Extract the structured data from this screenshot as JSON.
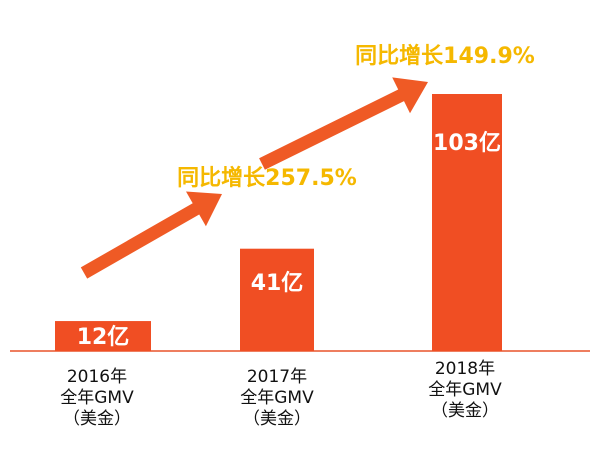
{
  "colors": {
    "bar": "#F04E23",
    "arrow": "#EF5A25",
    "growth_text": "#F5B800",
    "axis": "#E8542A"
  },
  "chart_data": {
    "type": "bar",
    "title": "",
    "xlabel": "",
    "ylabel": "",
    "ylim": [
      0,
      115
    ],
    "grid": false,
    "categories": [
      [
        "2016年",
        "全年GMV",
        "（美金）"
      ],
      [
        "2017年",
        "全年GMV",
        "（美金）"
      ],
      [
        "2018年",
        "全年GMV",
        "（美金）"
      ]
    ],
    "values": [
      12,
      41,
      103
    ],
    "value_labels": [
      "12亿",
      "41亿",
      "103亿"
    ],
    "annotations": [
      {
        "text": "同比增长257.5%",
        "from": "2016",
        "to": "2017"
      },
      {
        "text": "同比增长149.9%",
        "from": "2017",
        "to": "2018"
      }
    ]
  }
}
